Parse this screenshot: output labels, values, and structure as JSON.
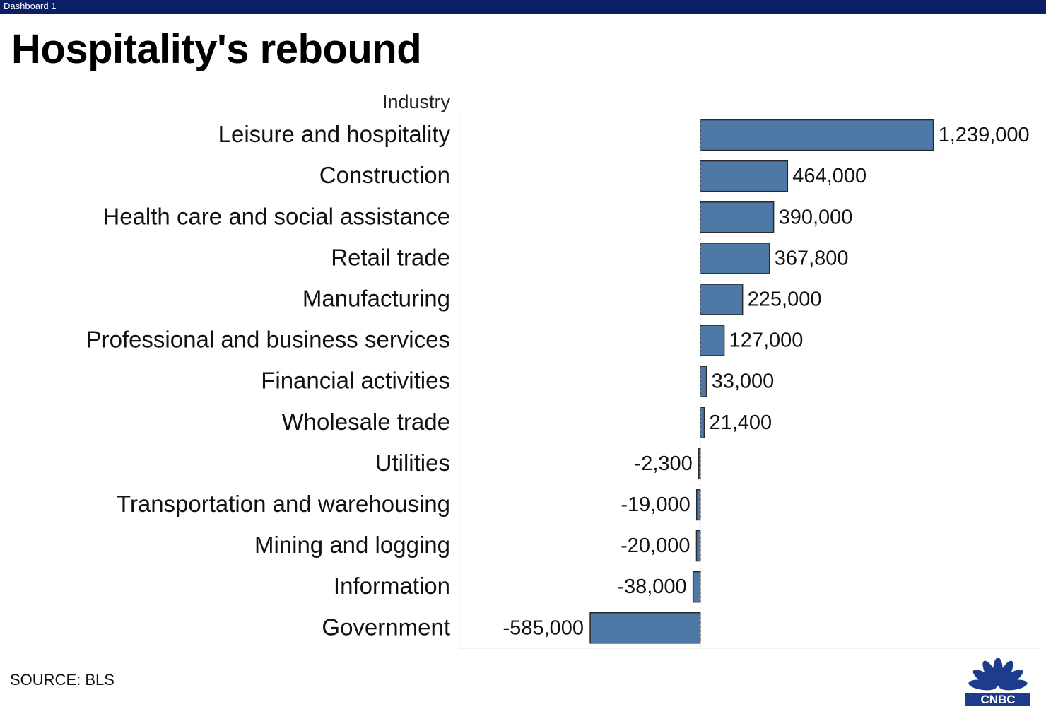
{
  "window": {
    "tab_label": "Dashboard 1"
  },
  "title": "Hospitality's rebound",
  "source": "SOURCE: BLS",
  "logo": {
    "icon": "cnbc-peacock-icon",
    "text": "CNBC",
    "color": "#1d3d8c"
  },
  "chart_data": {
    "type": "bar",
    "orientation": "horizontal",
    "category_header": "Industry",
    "categories": [
      "Leisure and hospitality",
      "Construction",
      "Health care and social assistance",
      "Retail trade",
      "Manufacturing",
      "Professional and business services",
      "Financial activities",
      "Wholesale trade",
      "Utilities",
      "Transportation and warehousing",
      "Mining and logging",
      "Information",
      "Government"
    ],
    "values": [
      1239000,
      464000,
      390000,
      367800,
      225000,
      127000,
      33000,
      21400,
      -2300,
      -19000,
      -20000,
      -38000,
      -585000
    ],
    "value_labels": [
      "1,239,000",
      "464,000",
      "390,000",
      "367,800",
      "225,000",
      "127,000",
      "33,000",
      "21,400",
      "-2,300",
      "-19,000",
      "-20,000",
      "-38,000",
      "-585,000"
    ],
    "xlim": [
      -1280000,
      1800000
    ],
    "bar_color": "#4e79a7",
    "grid": false,
    "zero_line": "dashed"
  }
}
